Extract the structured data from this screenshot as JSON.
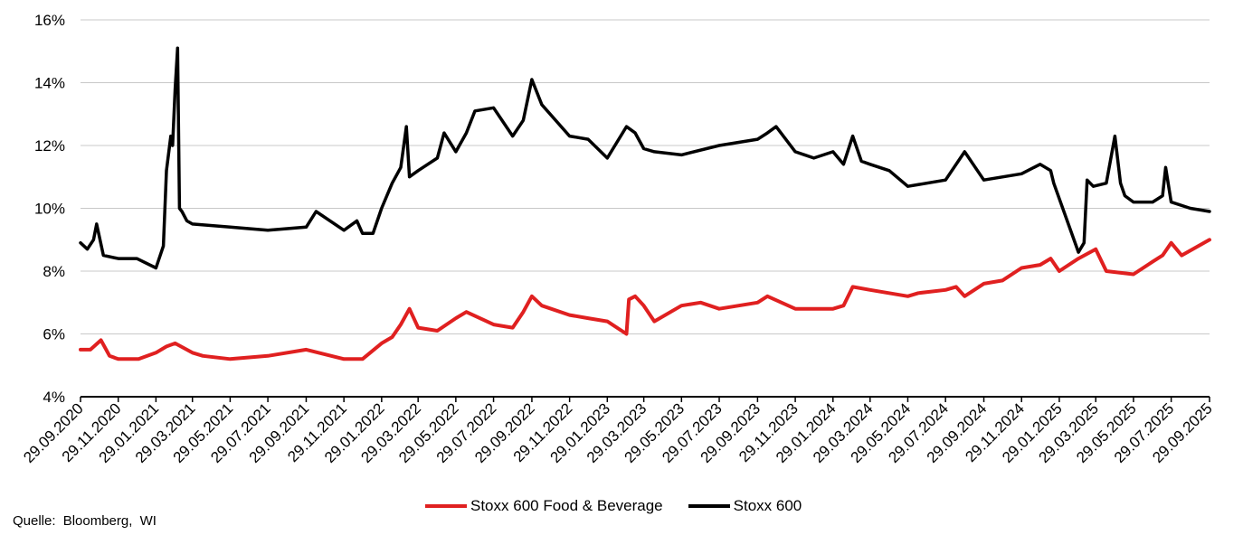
{
  "chart_data": {
    "type": "line",
    "y_ticks": [
      "4%",
      "6%",
      "8%",
      "10%",
      "12%",
      "14%",
      "16%"
    ],
    "ylim": [
      4,
      16
    ],
    "x_ticks": [
      "29.09.2020",
      "29.11.2020",
      "29.01.2021",
      "29.03.2021",
      "29.05.2021",
      "29.07.2021",
      "29.09.2021",
      "29.11.2021",
      "29.01.2022",
      "29.03.2022",
      "29.05.2022",
      "29.07.2022",
      "29.09.2022",
      "29.11.2022",
      "29.01.2023",
      "29.03.2023",
      "29.05.2023",
      "29.07.2023",
      "29.09.2023",
      "29.11.2023",
      "29.01.2024",
      "29.03.2024",
      "29.05.2024",
      "29.07.2024",
      "29.09.2024",
      "29.11.2024",
      "29.01.2025",
      "29.03.2025",
      "29.05.2025",
      "29.07.2025",
      "29.09.2025"
    ],
    "grid": true,
    "legend_position": "bottom",
    "series": [
      {
        "name": "Stoxx 600 Food & Beverage",
        "color": "#e02020",
        "x": [
          "29.09.2020",
          "15.10.2020",
          "01.11.2020",
          "15.11.2020",
          "29.11.2020",
          "01.01.2021",
          "29.01.2021",
          "15.02.2021",
          "01.03.2021",
          "29.03.2021",
          "15.04.2021",
          "29.05.2021",
          "29.07.2021",
          "29.09.2021",
          "29.11.2021",
          "29.12.2021",
          "29.01.2022",
          "15.02.2022",
          "01.03.2022",
          "15.03.2022",
          "29.03.2022",
          "29.04.2022",
          "29.05.2022",
          "15.06.2022",
          "29.07.2022",
          "29.08.2022",
          "15.09.2022",
          "29.09.2022",
          "15.10.2022",
          "29.11.2022",
          "29.12.2022",
          "29.01.2023",
          "01.03.2023",
          "05.03.2023",
          "15.03.2023",
          "29.03.2023",
          "15.04.2023",
          "29.05.2023",
          "29.06.2023",
          "29.07.2023",
          "29.09.2023",
          "15.10.2023",
          "29.11.2023",
          "29.01.2024",
          "15.02.2024",
          "01.03.2024",
          "29.03.2024",
          "29.05.2024",
          "15.06.2024",
          "29.07.2024",
          "15.08.2024",
          "29.08.2024",
          "29.09.2024",
          "29.10.2024",
          "29.11.2024",
          "29.12.2024",
          "15.01.2025",
          "29.01.2025",
          "01.03.2025",
          "29.03.2025",
          "15.04.2025",
          "29.05.2025",
          "29.06.2025",
          "15.07.2025",
          "29.07.2025",
          "15.08.2025",
          "29.09.2025"
        ],
        "values": [
          5.5,
          5.5,
          5.8,
          5.3,
          5.2,
          5.2,
          5.4,
          5.6,
          5.7,
          5.4,
          5.3,
          5.2,
          5.3,
          5.5,
          5.2,
          5.2,
          5.7,
          5.9,
          6.3,
          6.8,
          6.2,
          6.1,
          6.5,
          6.7,
          6.3,
          6.2,
          6.7,
          7.2,
          6.9,
          6.6,
          6.5,
          6.4,
          6.0,
          7.1,
          7.2,
          6.9,
          6.4,
          6.9,
          7.0,
          6.8,
          7.0,
          7.2,
          6.8,
          6.8,
          6.9,
          7.5,
          7.4,
          7.2,
          7.3,
          7.4,
          7.5,
          7.2,
          7.6,
          7.7,
          8.1,
          8.2,
          8.4,
          8.0,
          8.4,
          8.7,
          8.0,
          7.9,
          8.3,
          8.5,
          8.9,
          8.5,
          9.0
        ]
      },
      {
        "name": "Stoxx 600",
        "color": "#000000",
        "x": [
          "29.09.2020",
          "10.10.2020",
          "20.10.2020",
          "25.10.2020",
          "05.11.2020",
          "29.11.2020",
          "29.12.2020",
          "29.01.2021",
          "10.02.2021",
          "15.02.2021",
          "22.02.2021",
          "25.02.2021",
          "01.03.2021",
          "05.03.2021",
          "08.03.2021",
          "12.03.2021",
          "20.03.2021",
          "29.03.2021",
          "29.05.2021",
          "29.07.2021",
          "29.09.2021",
          "15.10.2021",
          "29.11.2021",
          "20.12.2021",
          "29.12.2021",
          "15.01.2022",
          "29.01.2022",
          "15.02.2022",
          "01.03.2022",
          "10.03.2022",
          "15.03.2022",
          "29.03.2022",
          "29.04.2022",
          "10.05.2022",
          "29.05.2022",
          "15.06.2022",
          "29.06.2022",
          "29.07.2022",
          "29.08.2022",
          "15.09.2022",
          "29.09.2022",
          "15.10.2022",
          "29.11.2022",
          "29.12.2022",
          "29.01.2023",
          "01.03.2023",
          "15.03.2023",
          "29.03.2023",
          "15.04.2023",
          "29.05.2023",
          "29.07.2023",
          "29.09.2023",
          "15.10.2023",
          "29.10.2023",
          "29.11.2023",
          "29.12.2023",
          "29.01.2024",
          "15.02.2024",
          "01.03.2024",
          "15.03.2024",
          "29.03.2024",
          "29.04.2024",
          "29.05.2024",
          "29.07.2024",
          "29.08.2024",
          "29.09.2024",
          "29.11.2024",
          "29.12.2024",
          "15.01.2025",
          "20.01.2025",
          "01.03.2025",
          "10.03.2025",
          "15.03.2025",
          "25.03.2025",
          "15.04.2025",
          "29.04.2025",
          "08.05.2025",
          "15.05.2025",
          "29.05.2025",
          "29.06.2025",
          "15.07.2025",
          "20.07.2025",
          "29.07.2025",
          "29.08.2025",
          "29.09.2025"
        ],
        "values": [
          8.9,
          8.7,
          9.0,
          9.5,
          8.5,
          8.4,
          8.4,
          8.1,
          8.8,
          11.2,
          12.3,
          12.0,
          13.8,
          15.1,
          10.0,
          9.9,
          9.6,
          9.5,
          9.4,
          9.3,
          9.4,
          9.9,
          9.3,
          9.6,
          9.2,
          9.2,
          10.0,
          10.8,
          11.3,
          12.6,
          11.0,
          11.2,
          11.6,
          12.4,
          11.8,
          12.4,
          13.1,
          13.2,
          12.3,
          12.8,
          14.1,
          13.3,
          12.3,
          12.2,
          11.6,
          12.6,
          12.4,
          11.9,
          11.8,
          11.7,
          12.0,
          12.2,
          12.4,
          12.6,
          11.8,
          11.6,
          11.8,
          11.4,
          12.3,
          11.5,
          11.4,
          11.2,
          10.7,
          10.9,
          11.8,
          10.9,
          11.1,
          11.4,
          11.2,
          10.8,
          8.6,
          8.9,
          10.9,
          10.7,
          10.8,
          12.3,
          10.8,
          10.4,
          10.2,
          10.2,
          10.4,
          11.3,
          10.2,
          10.0,
          9.9
        ]
      }
    ]
  },
  "legend": {
    "series1": "Stoxx 600 Food & Beverage",
    "series2": "Stoxx 600"
  },
  "source": "Quelle: Bloomberg, WI"
}
